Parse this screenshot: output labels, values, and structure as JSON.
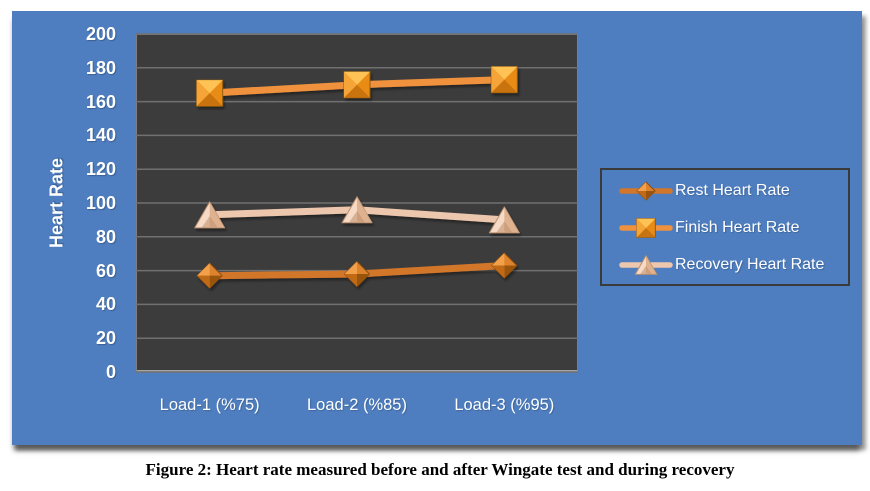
{
  "figure": {
    "caption": "Figure 2: Heart rate measured before and after Wingate test and during recovery"
  },
  "chart_data": {
    "type": "line",
    "title": "",
    "xlabel": "",
    "ylabel": "Heart Rate",
    "categories": [
      "Load-1 (%75)",
      "Load-2 (%85)",
      "Load-3 (%95)"
    ],
    "ylim": [
      0,
      200
    ],
    "ytick_step": 20,
    "grid": true,
    "legend_position": "right",
    "series": [
      {
        "name": "Rest Heart Rate",
        "marker": "diamond",
        "values": [
          57,
          58,
          63
        ],
        "line_color": "#d2762b",
        "facet_colors": [
          "#f2a04a",
          "#dd832e",
          "#c06a19",
          "#9a540f"
        ],
        "marker_stroke": "#8a4c10"
      },
      {
        "name": "Finish Heart Rate",
        "marker": "square",
        "values": [
          165,
          170,
          173
        ],
        "line_color": "#f0913d",
        "facet_colors": [
          "#ffc255",
          "#e88c17",
          "#c87311",
          "#f5a437"
        ],
        "marker_stroke": "#8f5c10"
      },
      {
        "name": "Recovery Heart Rate",
        "marker": "triangle",
        "values": [
          93,
          96,
          90
        ],
        "line_color": "#edc7ad",
        "facet_colors": [
          "#f6dac6",
          "#d8a881",
          "#bf8f6b",
          "#e8c3a9"
        ],
        "marker_stroke": "#b88e6e"
      }
    ],
    "colors": {
      "page_bg": "#ffffff",
      "panel_bg": "#4e7ec0",
      "plot_bg": "#3c3c3c",
      "gridline": "#707070",
      "axis_text": "#ffffff",
      "legend_border": "#3a3a3a",
      "caption_color": "#000000"
    }
  }
}
